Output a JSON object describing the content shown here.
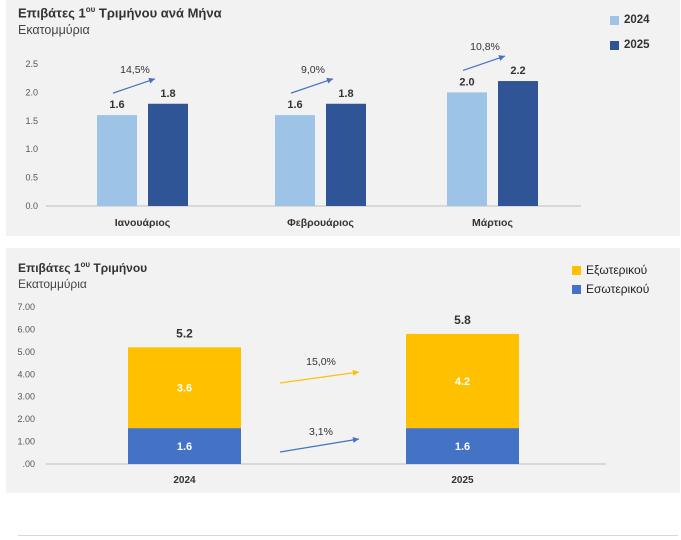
{
  "chart_data": [
    {
      "type": "bar",
      "title_main": "Επιβάτες 1",
      "title_sup": "ου",
      "title_rest": " Τριμήνου ανά Μήνα",
      "subtitle": "Εκατομμύρια",
      "categories": [
        "Ιανουάριος",
        "Φεβρουάριος",
        "Μάρτιος"
      ],
      "series": [
        {
          "name": "2024",
          "values": [
            1.6,
            1.6,
            2.0
          ],
          "labels": [
            "1.6",
            "1.6",
            "2.0"
          ],
          "color": "#9dc3e6"
        },
        {
          "name": "2025",
          "values": [
            1.8,
            1.8,
            2.2
          ],
          "labels": [
            "1.8",
            "1.8",
            "2.2"
          ],
          "color": "#2f5597"
        }
      ],
      "growth": [
        "14,5%",
        "9,0%",
        "10,8%"
      ],
      "yticks": [
        "0.0",
        "0.5",
        "1.0",
        "1.5",
        "2.0",
        "2.5"
      ],
      "ylim": [
        0,
        2.5
      ],
      "legend_position": "right",
      "grid": false,
      "arrow_color": "#4472c4"
    },
    {
      "type": "bar",
      "stacked": true,
      "title_main": "Επιβάτες 1",
      "title_sup": "ου",
      "title_rest": " Τριμήνου",
      "subtitle": "Εκατομμύρια",
      "categories": [
        "2024",
        "2025"
      ],
      "totals": [
        "5.2",
        "5.8"
      ],
      "series": [
        {
          "name": "Εξωτερικού",
          "values": [
            3.6,
            4.2
          ],
          "labels": [
            "3.6",
            "4.2"
          ],
          "color": "#ffc000"
        },
        {
          "name": "Εσωτερικού",
          "values": [
            1.6,
            1.6
          ],
          "labels": [
            "1.6",
            "1.6"
          ],
          "color": "#4472c4"
        }
      ],
      "growth": [
        {
          "series": "Εξωτερικού",
          "label": "15,0%",
          "color": "#ffc000"
        },
        {
          "series": "Εσωτερικού",
          "label": "3,1%",
          "color": "#4472c4"
        }
      ],
      "yticks": [
        ".00",
        "1.00",
        "2.00",
        "3.00",
        "4.00",
        "5.00",
        "6.00",
        "7.00"
      ],
      "ylim": [
        0,
        7
      ],
      "legend_position": "top-right",
      "grid": false
    }
  ]
}
